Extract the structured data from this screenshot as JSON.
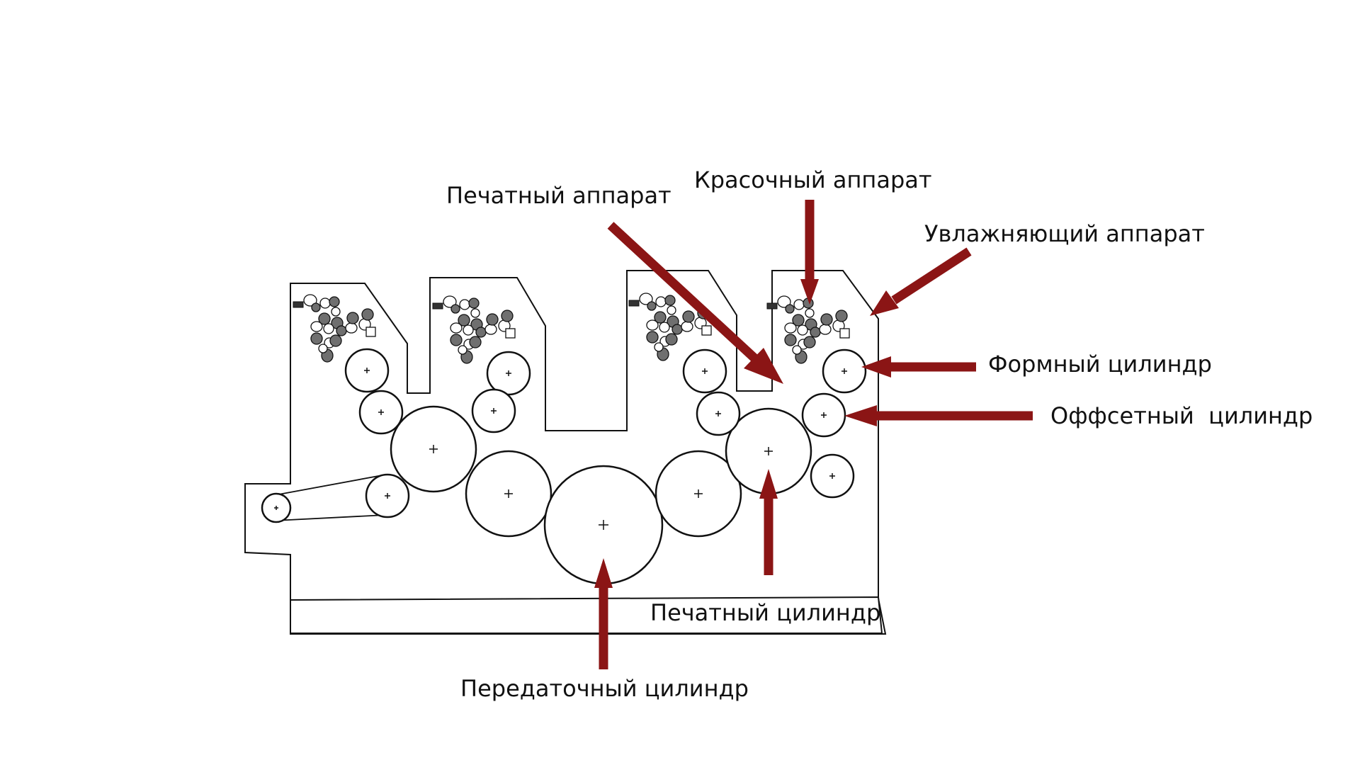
{
  "labels": {
    "printing_unit": "Печатный аппарат",
    "inking_unit": "Красочный аппарат",
    "dampening_unit": "Увлажняющий аппарат",
    "plate_cylinder": "Формный цилиндр",
    "offset_cylinder": "Оффсетный  цилиндр",
    "impression_cylinder": "Печатный цилиндр",
    "transfer_cylinder": "Передаточный цилиндр"
  },
  "colors": {
    "arrow": "#8b1515",
    "outline": "#111111",
    "dark_roller": "#6f6f6f"
  }
}
